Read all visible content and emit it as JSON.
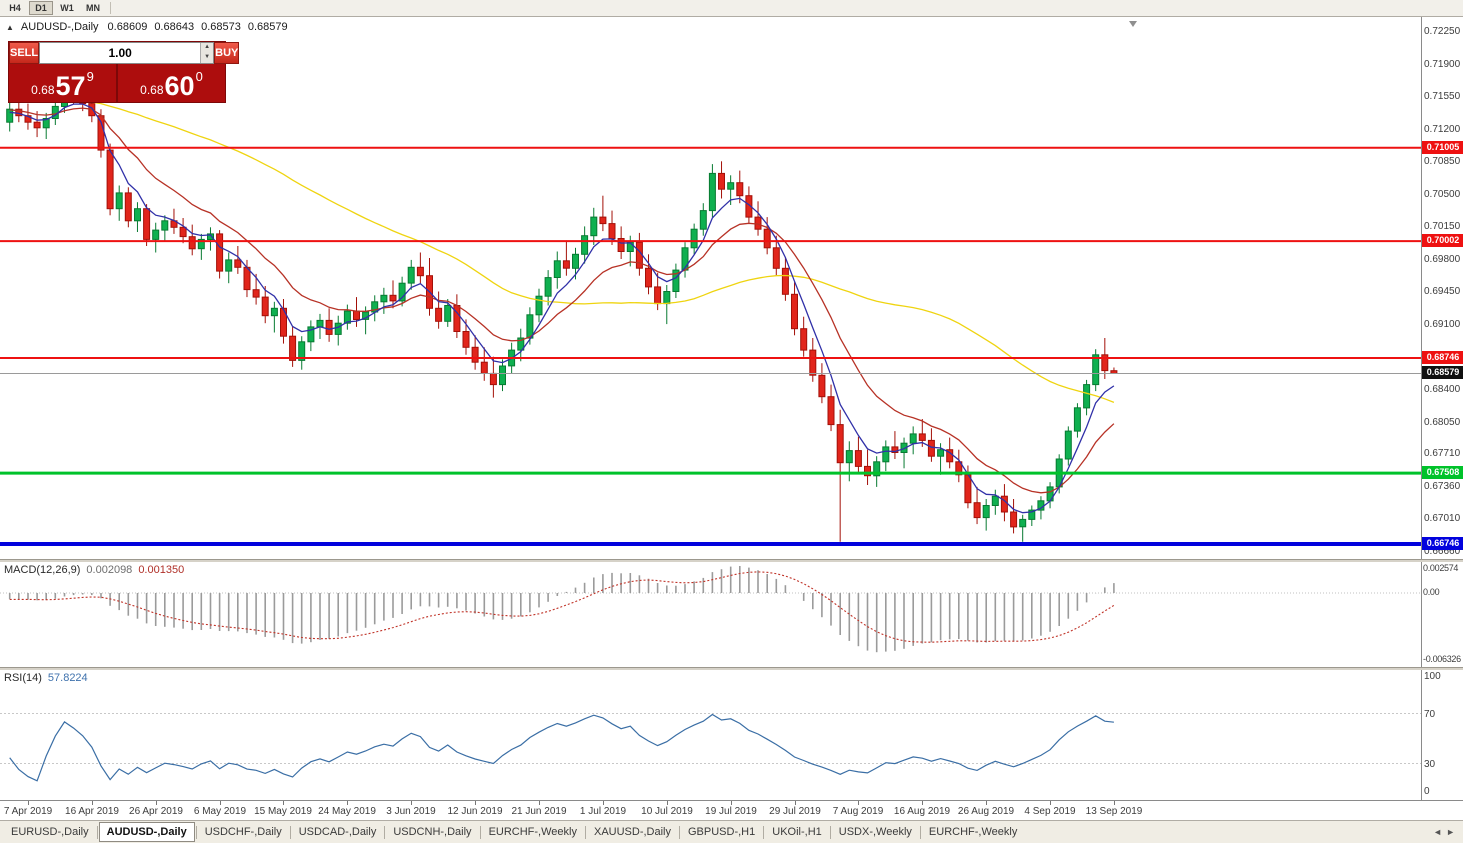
{
  "toolbar": {
    "timeframes": [
      {
        "label": "H4",
        "active": false
      },
      {
        "label": "D1",
        "active": true
      },
      {
        "label": "W1",
        "active": false
      },
      {
        "label": "MN",
        "active": false
      }
    ]
  },
  "chart_info": {
    "collapse_icon": "▲",
    "symbol": "AUDUSD-,Daily",
    "open": "0.68609",
    "high": "0.68643",
    "low": "0.68573",
    "close": "0.68579"
  },
  "trade_panel": {
    "sell_label": "SELL",
    "buy_label": "BUY",
    "volume": "1.00",
    "spin_up_icon": "▲",
    "spin_down_icon": "▼",
    "sell_price": {
      "prefix": "0.68",
      "big": "57",
      "sup": "9"
    },
    "buy_price": {
      "prefix": "0.68",
      "big": "60",
      "sup": "0"
    }
  },
  "colors": {
    "bull": "#0fb050",
    "bull_border": "#077a31",
    "bear": "#e1251b",
    "bear_border": "#a31008",
    "ma_fast": "#3030a8",
    "ma_mid": "#b73226",
    "ma_slow": "#efd410",
    "macd_hist": "#9b9b9b",
    "macd_signal": "#c03328",
    "rsi_line": "#3a6ea5"
  },
  "chart_data": {
    "type": "candlestick",
    "symbol": "AUDUSD-",
    "timeframe": "Daily",
    "price_range": [
      0.666,
      0.7234
    ],
    "price_axis_labels": [
      "0.72250",
      "0.71900",
      "0.71550",
      "0.71200",
      "0.70850",
      "0.70500",
      "0.70150",
      "0.69800",
      "0.69450",
      "0.69100",
      "0.68400",
      "0.68050",
      "0.67710",
      "0.67360",
      "0.67010",
      "0.66660"
    ],
    "hlines": [
      {
        "price": 0.71005,
        "label": "0.71005",
        "color": "#ee1111",
        "width": 2
      },
      {
        "price": 0.70002,
        "label": "0.70002",
        "color": "#ee1111",
        "width": 2
      },
      {
        "price": 0.68746,
        "label": "0.68746",
        "color": "#ee1111",
        "width": 2
      },
      {
        "price": 0.67508,
        "label": "0.67508",
        "color": "#00c22a",
        "width": 3
      },
      {
        "price": 0.66746,
        "label": "0.66746",
        "color": "#0202dd",
        "width": 4
      }
    ],
    "current_price": {
      "value": 0.68579,
      "label": "0.68579",
      "color": "#101010"
    },
    "moving_averages": [
      {
        "name": "fast",
        "type": "ema",
        "period": 5
      },
      {
        "name": "mid",
        "type": "ema",
        "period": 13
      },
      {
        "name": "slow",
        "type": "sma",
        "period": 45
      }
    ],
    "date_ticks": [
      {
        "i": 2,
        "label": "7 Apr 2019"
      },
      {
        "i": 9,
        "label": "16 Apr 2019"
      },
      {
        "i": 16,
        "label": "26 Apr 2019"
      },
      {
        "i": 23,
        "label": "6 May 2019"
      },
      {
        "i": 30,
        "label": "15 May 2019"
      },
      {
        "i": 37,
        "label": "24 May 2019"
      },
      {
        "i": 44,
        "label": "3 Jun 2019"
      },
      {
        "i": 51,
        "label": "12 Jun 2019"
      },
      {
        "i": 58,
        "label": "21 Jun 2019"
      },
      {
        "i": 65,
        "label": "1 Jul 2019"
      },
      {
        "i": 72,
        "label": "10 Jul 2019"
      },
      {
        "i": 79,
        "label": "19 Jul 2019"
      },
      {
        "i": 86,
        "label": "29 Jul 2019"
      },
      {
        "i": 93,
        "label": "7 Aug 2019"
      },
      {
        "i": 100,
        "label": "16 Aug 2019"
      },
      {
        "i": 107,
        "label": "26 Aug 2019"
      },
      {
        "i": 114,
        "label": "4 Sep 2019"
      },
      {
        "i": 121,
        "label": "13 Sep 2019"
      }
    ],
    "ohlc": [
      [
        0.7128,
        0.715,
        0.7118,
        0.7142
      ],
      [
        0.7142,
        0.7155,
        0.7128,
        0.7135
      ],
      [
        0.7135,
        0.7148,
        0.712,
        0.7128
      ],
      [
        0.7128,
        0.714,
        0.7112,
        0.7122
      ],
      [
        0.7122,
        0.7138,
        0.711,
        0.7132
      ],
      [
        0.7132,
        0.715,
        0.7125,
        0.7145
      ],
      [
        0.7145,
        0.7168,
        0.7138,
        0.716
      ],
      [
        0.716,
        0.7176,
        0.7148,
        0.7155
      ],
      [
        0.7155,
        0.7165,
        0.714,
        0.7148
      ],
      [
        0.7148,
        0.7158,
        0.7128,
        0.7135
      ],
      [
        0.7135,
        0.7142,
        0.709,
        0.7098
      ],
      [
        0.7098,
        0.7105,
        0.7028,
        0.7035
      ],
      [
        0.7035,
        0.706,
        0.7022,
        0.7052
      ],
      [
        0.7052,
        0.7058,
        0.7015,
        0.7022
      ],
      [
        0.7022,
        0.7042,
        0.701,
        0.7035
      ],
      [
        0.7035,
        0.704,
        0.6995,
        0.7002
      ],
      [
        0.7002,
        0.702,
        0.6988,
        0.7012
      ],
      [
        0.7012,
        0.7028,
        0.7,
        0.7022
      ],
      [
        0.7022,
        0.7035,
        0.7008,
        0.7015
      ],
      [
        0.7015,
        0.7025,
        0.6998,
        0.7005
      ],
      [
        0.7005,
        0.7018,
        0.6985,
        0.6992
      ],
      [
        0.6992,
        0.7008,
        0.698,
        0.7002
      ],
      [
        0.7002,
        0.7015,
        0.699,
        0.7008
      ],
      [
        0.7008,
        0.7012,
        0.696,
        0.6968
      ],
      [
        0.6968,
        0.6988,
        0.6955,
        0.698
      ],
      [
        0.698,
        0.6995,
        0.6965,
        0.6972
      ],
      [
        0.6972,
        0.698,
        0.694,
        0.6948
      ],
      [
        0.6948,
        0.6965,
        0.6932,
        0.694
      ],
      [
        0.694,
        0.6952,
        0.6912,
        0.692
      ],
      [
        0.692,
        0.6935,
        0.6902,
        0.6928
      ],
      [
        0.6928,
        0.6938,
        0.689,
        0.6898
      ],
      [
        0.6898,
        0.6908,
        0.6865,
        0.6872
      ],
      [
        0.6872,
        0.6898,
        0.6862,
        0.6892
      ],
      [
        0.6892,
        0.6915,
        0.6882,
        0.6908
      ],
      [
        0.6908,
        0.6922,
        0.6895,
        0.6915
      ],
      [
        0.6915,
        0.6928,
        0.6892,
        0.69
      ],
      [
        0.69,
        0.692,
        0.6888,
        0.6912
      ],
      [
        0.6912,
        0.6932,
        0.6905,
        0.6925
      ],
      [
        0.6925,
        0.694,
        0.6908,
        0.6916
      ],
      [
        0.6916,
        0.693,
        0.69,
        0.6924
      ],
      [
        0.6924,
        0.6942,
        0.6914,
        0.6935
      ],
      [
        0.6935,
        0.695,
        0.6922,
        0.6942
      ],
      [
        0.6942,
        0.6958,
        0.6928,
        0.6936
      ],
      [
        0.6936,
        0.6962,
        0.693,
        0.6955
      ],
      [
        0.6955,
        0.698,
        0.6948,
        0.6972
      ],
      [
        0.6972,
        0.6988,
        0.6955,
        0.6963
      ],
      [
        0.6963,
        0.6982,
        0.692,
        0.6928
      ],
      [
        0.6928,
        0.6946,
        0.6906,
        0.6914
      ],
      [
        0.6914,
        0.6938,
        0.6908,
        0.6931
      ],
      [
        0.6931,
        0.6943,
        0.6896,
        0.6903
      ],
      [
        0.6903,
        0.6916,
        0.6878,
        0.6886
      ],
      [
        0.6886,
        0.6899,
        0.6862,
        0.687
      ],
      [
        0.687,
        0.6886,
        0.685,
        0.6858
      ],
      [
        0.6858,
        0.6876,
        0.6832,
        0.6846
      ],
      [
        0.6846,
        0.6873,
        0.6839,
        0.6866
      ],
      [
        0.6866,
        0.6891,
        0.6858,
        0.6883
      ],
      [
        0.6883,
        0.6906,
        0.6871,
        0.6896
      ],
      [
        0.6896,
        0.6929,
        0.6889,
        0.6921
      ],
      [
        0.6921,
        0.6949,
        0.6913,
        0.6941
      ],
      [
        0.6941,
        0.6969,
        0.6931,
        0.6961
      ],
      [
        0.6961,
        0.6989,
        0.6949,
        0.6979
      ],
      [
        0.6979,
        0.7001,
        0.6963,
        0.6971
      ],
      [
        0.6971,
        0.6993,
        0.6959,
        0.6986
      ],
      [
        0.6986,
        0.7016,
        0.6976,
        0.7006
      ],
      [
        0.7006,
        0.7036,
        0.6996,
        0.7026
      ],
      [
        0.7026,
        0.7049,
        0.7011,
        0.7019
      ],
      [
        0.7019,
        0.7033,
        0.6996,
        0.7003
      ],
      [
        0.7003,
        0.7016,
        0.6981,
        0.6989
      ],
      [
        0.6989,
        0.7006,
        0.6973,
        0.6999
      ],
      [
        0.6999,
        0.7009,
        0.6963,
        0.6971
      ],
      [
        0.6971,
        0.6986,
        0.6943,
        0.6951
      ],
      [
        0.6951,
        0.6966,
        0.6926,
        0.6933
      ],
      [
        0.6933,
        0.6953,
        0.6911,
        0.6946
      ],
      [
        0.6946,
        0.6976,
        0.6939,
        0.6969
      ],
      [
        0.6969,
        0.6999,
        0.6961,
        0.6993
      ],
      [
        0.6993,
        0.7019,
        0.6986,
        0.7013
      ],
      [
        0.7013,
        0.7041,
        0.7006,
        0.7033
      ],
      [
        0.7033,
        0.7083,
        0.7026,
        0.7073
      ],
      [
        0.7073,
        0.7086,
        0.7046,
        0.7056
      ],
      [
        0.7056,
        0.7071,
        0.7039,
        0.7063
      ],
      [
        0.7063,
        0.7076,
        0.7041,
        0.7049
      ],
      [
        0.7049,
        0.7059,
        0.7019,
        0.7026
      ],
      [
        0.7026,
        0.7043,
        0.7006,
        0.7013
      ],
      [
        0.7013,
        0.7026,
        0.6986,
        0.6993
      ],
      [
        0.6993,
        0.7006,
        0.6963,
        0.6971
      ],
      [
        0.6971,
        0.6983,
        0.6936,
        0.6943
      ],
      [
        0.6943,
        0.6956,
        0.6899,
        0.6906
      ],
      [
        0.6906,
        0.6919,
        0.6876,
        0.6883
      ],
      [
        0.6883,
        0.6896,
        0.6849,
        0.6856
      ],
      [
        0.6856,
        0.6869,
        0.6826,
        0.6833
      ],
      [
        0.6833,
        0.6846,
        0.6796,
        0.6803
      ],
      [
        0.6803,
        0.6819,
        0.6677,
        0.6762
      ],
      [
        0.6762,
        0.6785,
        0.6742,
        0.6775
      ],
      [
        0.6775,
        0.679,
        0.6752,
        0.6758
      ],
      [
        0.6758,
        0.6776,
        0.6738,
        0.6748
      ],
      [
        0.6748,
        0.6769,
        0.6736,
        0.6763
      ],
      [
        0.6763,
        0.6786,
        0.6753,
        0.6779
      ],
      [
        0.6779,
        0.6796,
        0.6766,
        0.6773
      ],
      [
        0.6773,
        0.6789,
        0.6756,
        0.6783
      ],
      [
        0.6783,
        0.6801,
        0.6771,
        0.6793
      ],
      [
        0.6793,
        0.6809,
        0.6779,
        0.6786
      ],
      [
        0.6786,
        0.6799,
        0.6763,
        0.6769
      ],
      [
        0.6769,
        0.6783,
        0.6749,
        0.6776
      ],
      [
        0.6776,
        0.6789,
        0.6756,
        0.6763
      ],
      [
        0.6763,
        0.6776,
        0.6741,
        0.6749
      ],
      [
        0.6749,
        0.6759,
        0.6713,
        0.6719
      ],
      [
        0.6719,
        0.6736,
        0.6696,
        0.6703
      ],
      [
        0.6703,
        0.6723,
        0.6689,
        0.6716
      ],
      [
        0.6716,
        0.6733,
        0.6706,
        0.6726
      ],
      [
        0.6726,
        0.6739,
        0.6699,
        0.6709
      ],
      [
        0.6709,
        0.6723,
        0.6686,
        0.6693
      ],
      [
        0.6693,
        0.6706,
        0.6677,
        0.6701
      ],
      [
        0.6701,
        0.6716,
        0.6694,
        0.6711
      ],
      [
        0.6711,
        0.6726,
        0.6701,
        0.6721
      ],
      [
        0.6721,
        0.6741,
        0.6713,
        0.6736
      ],
      [
        0.6736,
        0.6771,
        0.6729,
        0.6766
      ],
      [
        0.6766,
        0.6801,
        0.6759,
        0.6796
      ],
      [
        0.6796,
        0.6826,
        0.6789,
        0.6821
      ],
      [
        0.6821,
        0.6851,
        0.6813,
        0.6846
      ],
      [
        0.6846,
        0.6884,
        0.6839,
        0.6878
      ],
      [
        0.6878,
        0.6896,
        0.6852,
        0.6861
      ],
      [
        0.68609,
        0.68643,
        0.68573,
        0.68579
      ]
    ]
  },
  "macd": {
    "title": "MACD(12,26,9)",
    "main_value": "0.002098",
    "signal_value": "0.001350",
    "axis_labels": [
      "0.002574",
      "0.00",
      "-0.006326"
    ],
    "fast": 12,
    "slow": 26,
    "signal": 9
  },
  "rsi": {
    "title": "RSI(14)",
    "value": "57.8224",
    "axis_labels": [
      "100",
      "70",
      "30",
      "0"
    ],
    "period": 14,
    "levels": [
      70,
      30
    ]
  },
  "tabs": {
    "scroll_left": "◄",
    "scroll_right": "►",
    "items": [
      {
        "label": "EURUSD-,Daily",
        "active": false
      },
      {
        "label": "AUDUSD-,Daily",
        "active": true
      },
      {
        "label": "USDCHF-,Daily",
        "active": false
      },
      {
        "label": "USDCAD-,Daily",
        "active": false
      },
      {
        "label": "USDCNH-,Daily",
        "active": false
      },
      {
        "label": "EURCHF-,Weekly",
        "active": false
      },
      {
        "label": "XAUUSD-,Daily",
        "active": false
      },
      {
        "label": "GBPUSD-,H1",
        "active": false
      },
      {
        "label": "UKOil-,H1",
        "active": false
      },
      {
        "label": "USDX-,Weekly",
        "active": false
      },
      {
        "label": "EURCHF-,Weekly",
        "active": false
      }
    ]
  }
}
